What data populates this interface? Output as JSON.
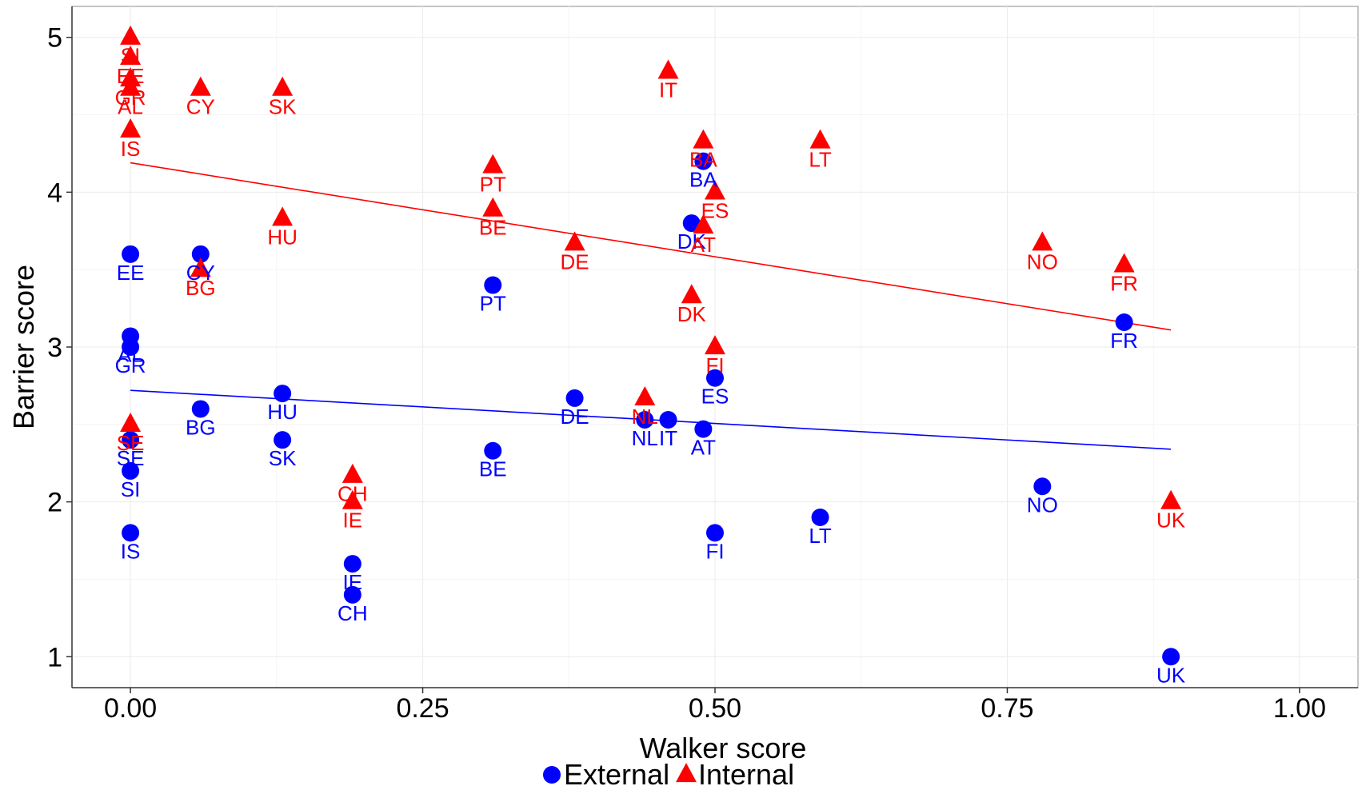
{
  "chart_data": {
    "type": "scatter",
    "xlabel": "Walker score",
    "ylabel": "Barrier score",
    "xlim": [
      -0.05,
      1.05
    ],
    "ylim": [
      0.8,
      5.2
    ],
    "xticks": [
      0.0,
      0.25,
      0.5,
      0.75,
      1.0
    ],
    "xtick_labels": [
      "0.00",
      "0.25",
      "0.50",
      "0.75",
      "1.00"
    ],
    "yticks": [
      1,
      2,
      3,
      4,
      5
    ],
    "ytick_labels": [
      "1",
      "2",
      "3",
      "4",
      "5"
    ],
    "grid": true,
    "legend": "bottom",
    "series": [
      {
        "name": "External",
        "color": "#0000ff",
        "marker": "circle",
        "points": [
          {
            "label": "EE",
            "x": 0.0,
            "y": 3.6
          },
          {
            "label": "AL",
            "x": 0.0,
            "y": 3.07
          },
          {
            "label": "GR",
            "x": 0.0,
            "y": 3.0
          },
          {
            "label": "SE",
            "x": 0.0,
            "y": 2.4
          },
          {
            "label": "SI",
            "x": 0.0,
            "y": 2.2
          },
          {
            "label": "IS",
            "x": 0.0,
            "y": 1.8
          },
          {
            "label": "CY",
            "x": 0.06,
            "y": 3.6
          },
          {
            "label": "BG",
            "x": 0.06,
            "y": 2.6
          },
          {
            "label": "HU",
            "x": 0.13,
            "y": 2.7
          },
          {
            "label": "SK",
            "x": 0.13,
            "y": 2.4
          },
          {
            "label": "IE",
            "x": 0.19,
            "y": 1.6
          },
          {
            "label": "CH",
            "x": 0.19,
            "y": 1.4
          },
          {
            "label": "PT",
            "x": 0.31,
            "y": 3.4
          },
          {
            "label": "BE",
            "x": 0.31,
            "y": 2.33
          },
          {
            "label": "DE",
            "x": 0.38,
            "y": 2.67
          },
          {
            "label": "NL",
            "x": 0.44,
            "y": 2.53
          },
          {
            "label": "IT",
            "x": 0.46,
            "y": 2.53
          },
          {
            "label": "DK",
            "x": 0.48,
            "y": 3.8
          },
          {
            "label": "BA",
            "x": 0.49,
            "y": 4.2
          },
          {
            "label": "AT",
            "x": 0.49,
            "y": 2.47
          },
          {
            "label": "ES",
            "x": 0.5,
            "y": 2.8
          },
          {
            "label": "FI",
            "x": 0.5,
            "y": 1.8
          },
          {
            "label": "LT",
            "x": 0.59,
            "y": 1.9
          },
          {
            "label": "NO",
            "x": 0.78,
            "y": 2.1
          },
          {
            "label": "FR",
            "x": 0.85,
            "y": 3.16
          },
          {
            "label": "UK",
            "x": 0.89,
            "y": 1.0
          }
        ],
        "trend": {
          "x": [
            0.0,
            0.89
          ],
          "y": [
            2.72,
            2.34
          ]
        }
      },
      {
        "name": "Internal",
        "color": "#ff0000",
        "marker": "triangle",
        "points": [
          {
            "label": "SI",
            "x": 0.0,
            "y": 5.0
          },
          {
            "label": "EE",
            "x": 0.0,
            "y": 4.87
          },
          {
            "label": "GR",
            "x": 0.0,
            "y": 4.73
          },
          {
            "label": "AL",
            "x": 0.0,
            "y": 4.67
          },
          {
            "label": "IS",
            "x": 0.0,
            "y": 4.4
          },
          {
            "label": "SE",
            "x": 0.0,
            "y": 2.5
          },
          {
            "label": "CY",
            "x": 0.06,
            "y": 4.67
          },
          {
            "label": "BG",
            "x": 0.06,
            "y": 3.5
          },
          {
            "label": "SK",
            "x": 0.13,
            "y": 4.67
          },
          {
            "label": "HU",
            "x": 0.13,
            "y": 3.83
          },
          {
            "label": "CH",
            "x": 0.19,
            "y": 2.17
          },
          {
            "label": "IE",
            "x": 0.19,
            "y": 2.0
          },
          {
            "label": "PT",
            "x": 0.31,
            "y": 4.17
          },
          {
            "label": "BE",
            "x": 0.31,
            "y": 3.89
          },
          {
            "label": "DE",
            "x": 0.38,
            "y": 3.67
          },
          {
            "label": "NL",
            "x": 0.44,
            "y": 2.67
          },
          {
            "label": "IT",
            "x": 0.46,
            "y": 4.78
          },
          {
            "label": "DK",
            "x": 0.48,
            "y": 3.33
          },
          {
            "label": "BA",
            "x": 0.49,
            "y": 4.33
          },
          {
            "label": "AT",
            "x": 0.49,
            "y": 3.78
          },
          {
            "label": "ES",
            "x": 0.5,
            "y": 4.0
          },
          {
            "label": "FI",
            "x": 0.5,
            "y": 3.0
          },
          {
            "label": "LT",
            "x": 0.59,
            "y": 4.33
          },
          {
            "label": "NO",
            "x": 0.78,
            "y": 3.67
          },
          {
            "label": "FR",
            "x": 0.85,
            "y": 3.53
          },
          {
            "label": "UK",
            "x": 0.89,
            "y": 2.0
          }
        ],
        "trend": {
          "x": [
            0.0,
            0.89
          ],
          "y": [
            4.19,
            3.11
          ]
        }
      }
    ]
  }
}
